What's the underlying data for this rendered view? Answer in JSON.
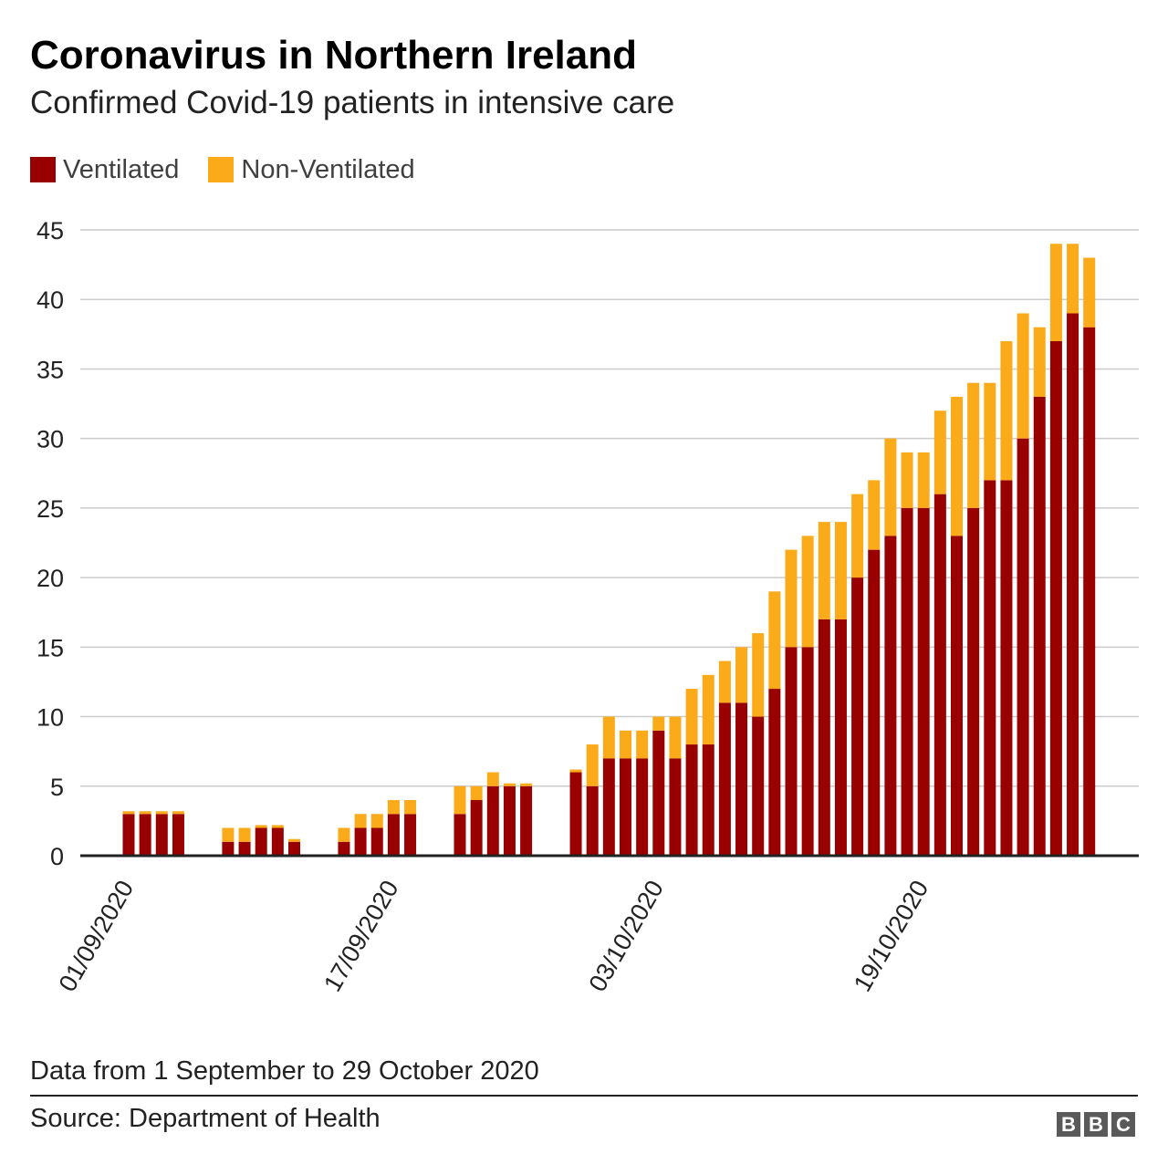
{
  "title": "Coronavirus in Northern Ireland",
  "subtitle": "Confirmed Covid-19 patients in intensive care",
  "legend": [
    {
      "label": "Ventilated",
      "color": "#990000"
    },
    {
      "label": "Non-Ventilated",
      "color": "#fbaa19"
    }
  ],
  "note": "Data from 1 September to 29 October 2020",
  "source": "Source: Department of Health",
  "logo": [
    "B",
    "B",
    "C"
  ],
  "chart_data": {
    "type": "bar",
    "stacked": true,
    "ylim": [
      0,
      45
    ],
    "yticks": [
      0,
      5,
      10,
      15,
      20,
      25,
      30,
      35,
      40,
      45
    ],
    "xtick_labels": [
      "01/09/2020",
      "17/09/2020",
      "03/10/2020",
      "19/10/2020"
    ],
    "grid": true,
    "legend_position": "top-left",
    "x": [
      "01/09/2020",
      "02/09/2020",
      "03/09/2020",
      "04/09/2020",
      "05/09/2020",
      "06/09/2020",
      "07/09/2020",
      "08/09/2020",
      "09/09/2020",
      "10/09/2020",
      "11/09/2020",
      "12/09/2020",
      "13/09/2020",
      "14/09/2020",
      "15/09/2020",
      "16/09/2020",
      "17/09/2020",
      "18/09/2020",
      "19/09/2020",
      "20/09/2020",
      "21/09/2020",
      "22/09/2020",
      "23/09/2020",
      "24/09/2020",
      "25/09/2020",
      "26/09/2020",
      "27/09/2020",
      "28/09/2020",
      "29/09/2020",
      "30/09/2020",
      "01/10/2020",
      "02/10/2020",
      "03/10/2020",
      "04/10/2020",
      "05/10/2020",
      "06/10/2020",
      "07/10/2020",
      "08/10/2020",
      "09/10/2020",
      "10/10/2020",
      "11/10/2020",
      "12/10/2020",
      "13/10/2020",
      "14/10/2020",
      "15/10/2020",
      "16/10/2020",
      "17/10/2020",
      "18/10/2020",
      "19/10/2020",
      "20/10/2020",
      "21/10/2020",
      "22/10/2020",
      "23/10/2020",
      "24/10/2020",
      "25/10/2020",
      "26/10/2020",
      "27/10/2020",
      "28/10/2020",
      "29/10/2020"
    ],
    "series": [
      {
        "name": "Ventilated",
        "color": "#990000",
        "values": [
          3,
          3,
          3,
          3,
          null,
          null,
          1,
          1,
          2,
          2,
          1,
          null,
          null,
          1,
          2,
          2,
          3,
          3,
          null,
          null,
          3,
          4,
          5,
          5,
          5,
          null,
          null,
          6,
          5,
          7,
          7,
          7,
          9,
          7,
          8,
          8,
          11,
          11,
          10,
          12,
          15,
          15,
          17,
          17,
          20,
          22,
          23,
          25,
          25,
          26,
          23,
          25,
          27,
          27,
          30,
          33,
          37,
          39,
          38
        ]
      },
      {
        "name": "Non-Ventilated",
        "color": "#fbaa19",
        "values": [
          0.2,
          0.2,
          0.2,
          0.2,
          null,
          null,
          1,
          1,
          0.2,
          0.2,
          0.2,
          null,
          null,
          1,
          1,
          1,
          1,
          1,
          null,
          null,
          2,
          1,
          1,
          0.2,
          0.2,
          null,
          null,
          0.2,
          3,
          3,
          2,
          2,
          1,
          3,
          4,
          5,
          3,
          4,
          6,
          7,
          7,
          8,
          7,
          7,
          6,
          5,
          7,
          4,
          4,
          6,
          10,
          9,
          7,
          10,
          9,
          5,
          7,
          5,
          5
        ]
      }
    ]
  }
}
